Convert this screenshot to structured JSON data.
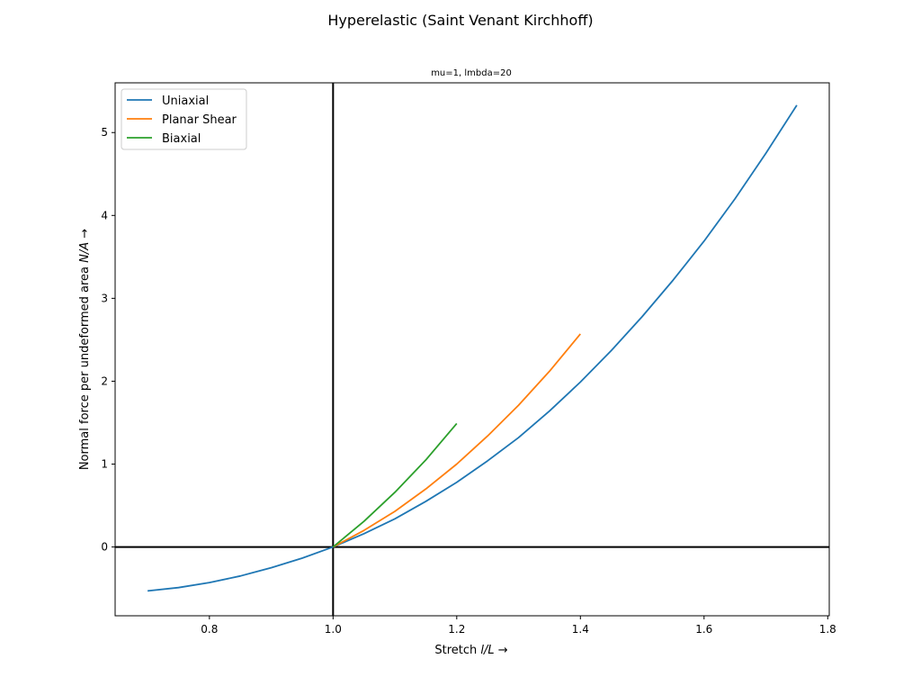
{
  "chart_data": {
    "type": "line",
    "suptitle": "Hyperelastic (Saint Venant Kirchhoff)",
    "title": "mu=1, lmbda=20",
    "xlabel_prefix": "Stretch ",
    "xlabel_math": "l/L",
    "xlabel_suffix": "  →",
    "ylabel_prefix": "Normal force per undeformed area ",
    "ylabel_math": "N/A",
    "ylabel_suffix": "  →",
    "xlim": [
      0.6475,
      1.8025
    ],
    "ylim": [
      -0.83,
      5.6
    ],
    "xticks": [
      0.8,
      1.0,
      1.2,
      1.4,
      1.6,
      1.8
    ],
    "xtick_labels": [
      "0.8",
      "1.0",
      "1.2",
      "1.4",
      "1.6",
      "1.8"
    ],
    "yticks": [
      0,
      1,
      2,
      3,
      4,
      5
    ],
    "ytick_labels": [
      "0",
      "1",
      "2",
      "3",
      "4",
      "5"
    ],
    "reference_lines": {
      "x": 1.0,
      "y": 0,
      "color": "#000000"
    },
    "legend_position": "top-left",
    "series": [
      {
        "name": "Uniaxial",
        "color": "#1f77b4",
        "x": [
          0.7,
          0.75,
          0.8,
          0.85,
          0.9,
          0.95,
          1.0,
          1.05,
          1.1,
          1.15,
          1.2,
          1.25,
          1.3,
          1.35,
          1.4,
          1.45,
          1.5,
          1.55,
          1.6,
          1.65,
          1.7,
          1.75
        ],
        "y": [
          -0.53,
          -0.49,
          -0.43,
          -0.35,
          -0.25,
          -0.135,
          0.0,
          0.16,
          0.34,
          0.55,
          0.78,
          1.04,
          1.32,
          1.64,
          1.99,
          2.37,
          2.78,
          3.22,
          3.69,
          4.2,
          4.75,
          5.33
        ]
      },
      {
        "name": "Planar Shear",
        "color": "#ff7f0e",
        "x": [
          1.0,
          1.05,
          1.1,
          1.15,
          1.2,
          1.25,
          1.3,
          1.35,
          1.4
        ],
        "y": [
          0.0,
          0.2,
          0.43,
          0.7,
          1.0,
          1.34,
          1.71,
          2.12,
          2.57
        ]
      },
      {
        "name": "Biaxial",
        "color": "#2ca02c",
        "x": [
          1.0,
          1.05,
          1.1,
          1.15,
          1.2
        ],
        "y": [
          0.0,
          0.31,
          0.66,
          1.05,
          1.49
        ]
      }
    ]
  }
}
